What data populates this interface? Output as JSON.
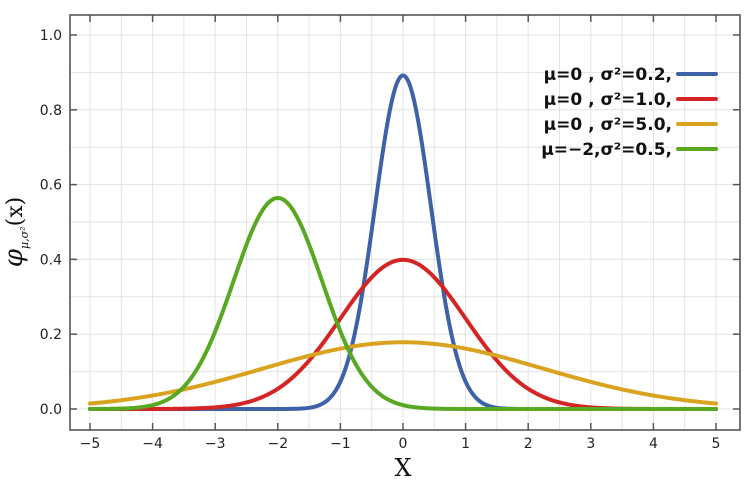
{
  "chart_data": {
    "type": "line",
    "ylabel": "φμ,σ²(x)",
    "ylabel_main": "φ",
    "ylabel_sub": "μ,σ²",
    "ylabel_arg": "(x)",
    "xlabel": "X",
    "xlim": [
      -5,
      5
    ],
    "ylim": [
      0,
      1.0
    ],
    "x_ticks": [
      -5,
      -4,
      -3,
      -2,
      -1,
      0,
      1,
      2,
      3,
      4,
      5
    ],
    "x_tick_labels": [
      "−5",
      "−4",
      "−3",
      "−2",
      "−1",
      "0",
      "1",
      "2",
      "3",
      "4",
      "5"
    ],
    "y_ticks": [
      0.0,
      0.2,
      0.4,
      0.6,
      0.8,
      1.0
    ],
    "y_tick_labels": [
      "0.0",
      "0.2",
      "0.4",
      "0.6",
      "0.8",
      "1.0"
    ],
    "grid": true,
    "legend_position": "top-right",
    "series": [
      {
        "name": "μ=0 ,  σ²=0.2,",
        "mu": 0,
        "variance": 0.2,
        "color": "#3d62a8",
        "peak": 0.89
      },
      {
        "name": "μ=0 ,  σ²=1.0,",
        "mu": 0,
        "variance": 1.0,
        "color": "#d42424",
        "peak": 0.4
      },
      {
        "name": "μ=0 ,  σ²=5.0,",
        "mu": 0,
        "variance": 5.0,
        "color": "#d9a21f",
        "peak": 0.18
      },
      {
        "name": "μ=−2,σ²=0.5,",
        "mu": -2,
        "variance": 0.5,
        "color": "#58a822",
        "peak": 0.56
      }
    ]
  }
}
